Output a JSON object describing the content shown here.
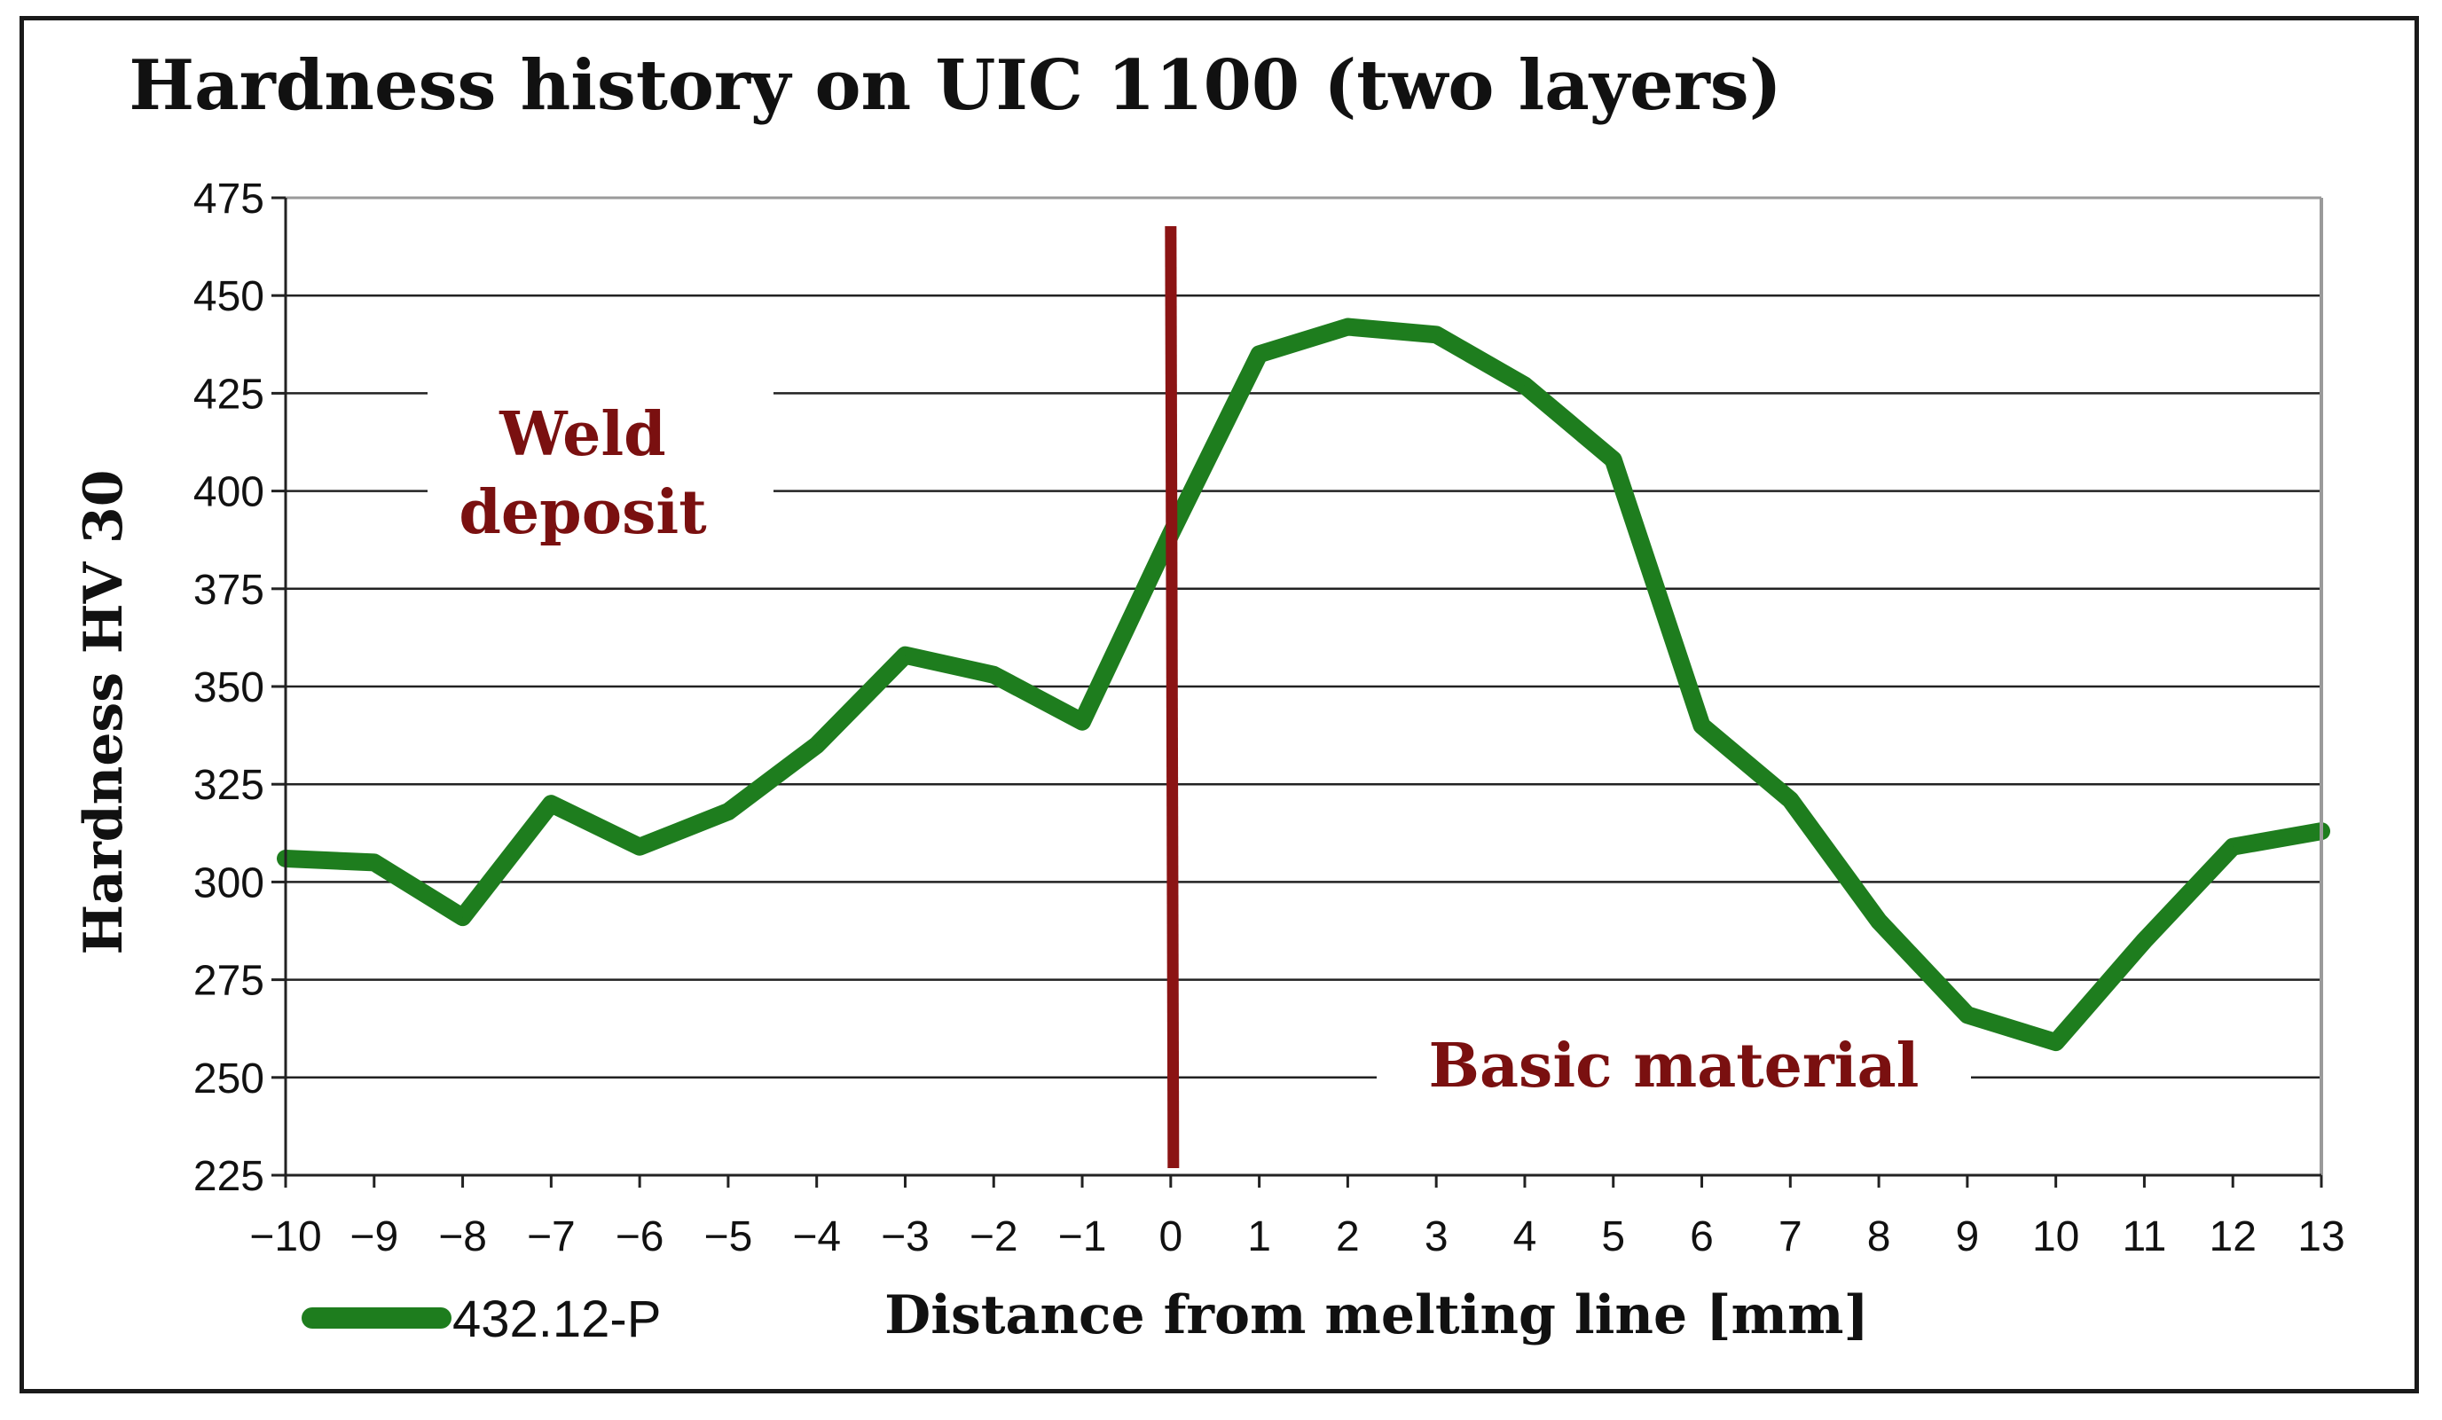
{
  "chart_data": {
    "type": "line",
    "title": "Hardness history on UIC 1100 (two layers)",
    "xlabel": "Distance from melting line [mm]",
    "ylabel": "Hardness HV 30",
    "xlim": [
      -10,
      13
    ],
    "ylim": [
      225,
      475
    ],
    "x_ticks": [
      "−10",
      "−9",
      "−8",
      "−7",
      "−6",
      "−5",
      "−4",
      "−3",
      "−2",
      "−1",
      "0",
      "1",
      "2",
      "3",
      "4",
      "5",
      "6",
      "7",
      "8",
      "9",
      "10",
      "11",
      "12",
      "13"
    ],
    "y_ticks": [
      225,
      250,
      275,
      300,
      325,
      350,
      375,
      400,
      425,
      450,
      475
    ],
    "grid": "horizontal",
    "legend_position": "bottom-left",
    "series": [
      {
        "name": "432.12-P",
        "color": "#1e7d1e",
        "x": [
          -10,
          -9,
          -8,
          -7,
          -6,
          -5,
          -4,
          -3,
          -2,
          -1,
          0,
          1,
          2,
          3,
          4,
          5,
          6,
          7,
          8,
          9,
          10,
          11,
          12,
          13
        ],
        "y": [
          306,
          305,
          291,
          320,
          309,
          318,
          335,
          358,
          353,
          341,
          389,
          435,
          442,
          440,
          427,
          408,
          340,
          321,
          290,
          266,
          259,
          285,
          309,
          313
        ]
      }
    ],
    "marker_line": {
      "x": 0,
      "color": "#8b1414"
    },
    "annotations": [
      {
        "lines": [
          "Weld",
          "deposit"
        ],
        "color": "#7a1010"
      },
      {
        "lines": [
          "Basic material"
        ],
        "color": "#7a1010"
      }
    ]
  }
}
